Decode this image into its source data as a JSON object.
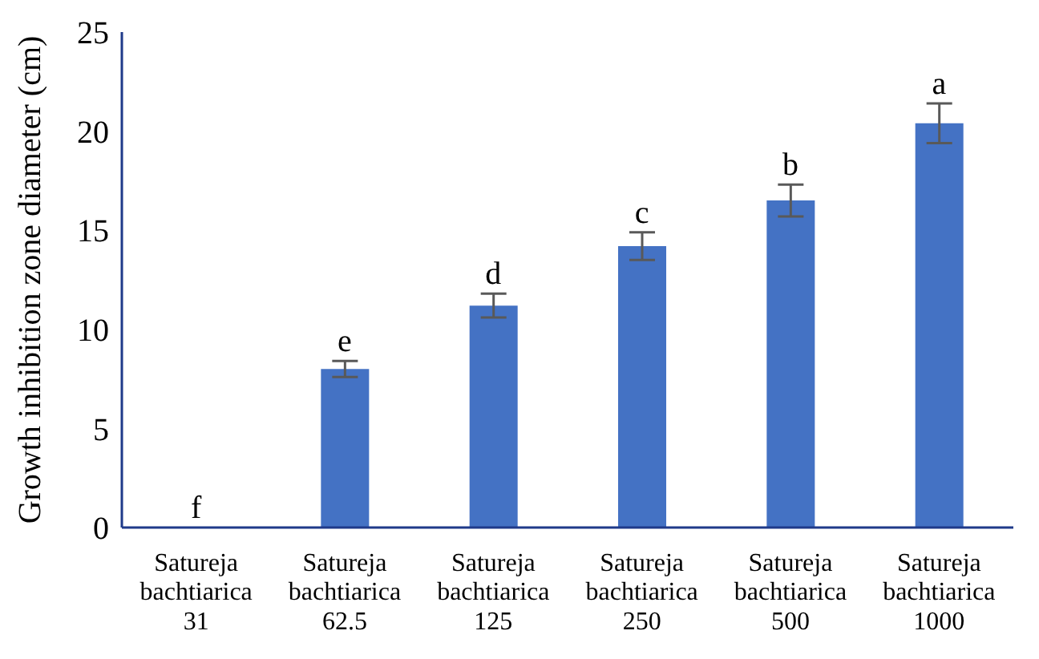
{
  "chart_data": {
    "type": "bar",
    "ylabel": "Growth inhibition zone diameter (cm)",
    "categories": [
      "Satureja bachtiarica 31",
      "Satureja bachtiarica 62.5",
      "Satureja bachtiarica 125",
      "Satureja bachtiarica 250",
      "Satureja bachtiarica 500",
      "Satureja bachtiarica 1000"
    ],
    "values": [
      0,
      8.0,
      11.2,
      14.2,
      16.5,
      20.4
    ],
    "errors": [
      null,
      0.4,
      0.6,
      0.7,
      0.8,
      1.0
    ],
    "color": "#4472c4",
    "ylim": [
      0,
      25
    ],
    "yticks": [
      0,
      5,
      10,
      15,
      20,
      25
    ],
    "grid": false,
    "legend": false,
    "annotations": [
      {
        "text": "f",
        "x": "Satureja bachtiarica 31",
        "y": 0
      },
      {
        "text": "e",
        "x": "Satureja bachtiarica 62.5",
        "y": 8.4
      },
      {
        "text": "d",
        "x": "Satureja bachtiarica 125",
        "y": 11.8
      },
      {
        "text": "c",
        "x": "Satureja bachtiarica 250",
        "y": 14.9
      },
      {
        "text": "b",
        "x": "Satureja bachtiarica 500",
        "y": 17.3
      },
      {
        "text": "a",
        "x": "Satureja bachtiarica 1000",
        "y": 21.4
      }
    ]
  }
}
